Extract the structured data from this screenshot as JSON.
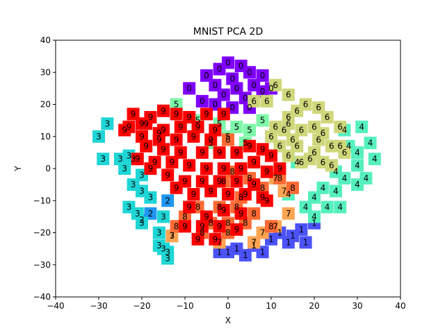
{
  "chart_data": {
    "type": "scatter",
    "title": "MNIST PCA 2D",
    "xlabel": "X",
    "ylabel": "Y",
    "xlim": [
      -40,
      40
    ],
    "ylim": [
      -40,
      40
    ],
    "xticks": [
      "−40",
      "−30",
      "−20",
      "−10",
      "0",
      "10",
      "20",
      "30",
      "40"
    ],
    "yticks": [
      "−40",
      "−30",
      "−20",
      "−10",
      "0",
      "10",
      "20",
      "30",
      "40"
    ],
    "grid": false,
    "marker": "square with digit label",
    "series": [
      {
        "name": "0",
        "color": "#7f00ff",
        "points": [
          [
            0,
            33
          ],
          [
            3,
            32
          ],
          [
            -2,
            31
          ],
          [
            5,
            30
          ],
          [
            -5,
            29
          ],
          [
            1,
            28
          ],
          [
            8,
            29
          ],
          [
            -3,
            26
          ],
          [
            2,
            25
          ],
          [
            6,
            26
          ],
          [
            -9,
            25
          ],
          [
            10,
            25
          ],
          [
            -1,
            23
          ],
          [
            4,
            22
          ],
          [
            -6,
            21
          ],
          [
            8,
            24
          ],
          [
            -3,
            20
          ],
          [
            1,
            19
          ],
          [
            5,
            19
          ]
        ]
      },
      {
        "name": "1",
        "color": "#4a52f8",
        "points": [
          [
            2,
            -25
          ],
          [
            6,
            -24
          ],
          [
            10,
            -22
          ],
          [
            12,
            -20
          ],
          [
            15,
            -21
          ],
          [
            17,
            -19
          ],
          [
            20,
            -17
          ],
          [
            8,
            -26
          ],
          [
            4,
            -27
          ],
          [
            0,
            -26
          ],
          [
            14,
            -23
          ],
          [
            18,
            -23
          ],
          [
            -2,
            -26
          ]
        ]
      },
      {
        "name": "2",
        "color": "#1f96f2",
        "points": [
          [
            -14,
            -10
          ],
          [
            -18,
            -14
          ],
          [
            -20,
            -16
          ]
        ]
      },
      {
        "name": "3",
        "color": "#1fd6d6",
        "points": [
          [
            -28,
            14
          ],
          [
            -30,
            10
          ],
          [
            -29,
            3
          ],
          [
            -25,
            3
          ],
          [
            -23,
            4
          ],
          [
            -22,
            3
          ],
          [
            -20,
            -2
          ],
          [
            -22,
            -5
          ],
          [
            -20,
            -7
          ],
          [
            -18,
            -9
          ],
          [
            -23,
            -12
          ],
          [
            -21,
            -14
          ],
          [
            -15,
            -15
          ],
          [
            -16,
            -20
          ],
          [
            -15,
            -25
          ],
          [
            -14,
            -28
          ],
          [
            -16,
            -24
          ],
          [
            -13,
            -21
          ],
          [
            -14,
            -26
          ],
          [
            -24,
            0
          ],
          [
            -20,
            -17
          ]
        ]
      },
      {
        "name": "4",
        "color": "#55f0be",
        "points": [
          [
            31,
            13
          ],
          [
            27,
            12
          ],
          [
            33,
            8
          ],
          [
            30,
            5
          ],
          [
            28,
            7
          ],
          [
            34,
            3
          ],
          [
            30,
            1
          ],
          [
            25,
            -1
          ],
          [
            32,
            -3
          ],
          [
            27,
            -3
          ],
          [
            22,
            -6
          ],
          [
            25,
            -7
          ],
          [
            20,
            -9
          ],
          [
            23,
            -12
          ],
          [
            18,
            -12
          ],
          [
            26,
            -12
          ],
          [
            20,
            -15
          ],
          [
            30,
            -5
          ],
          [
            14,
            -8
          ],
          [
            16,
            2
          ]
        ]
      },
      {
        "name": "5",
        "color": "#7df7a8",
        "points": [
          [
            -12,
            20
          ],
          [
            -2,
            14
          ],
          [
            2,
            13
          ],
          [
            5,
            12
          ],
          [
            8,
            15
          ],
          [
            -7,
            15
          ],
          [
            0,
            10
          ],
          [
            -4,
            8
          ],
          [
            4,
            8
          ]
        ]
      },
      {
        "name": "6",
        "color": "#d0d77a",
        "points": [
          [
            11,
            26
          ],
          [
            14,
            23
          ],
          [
            6,
            21
          ],
          [
            9,
            21
          ],
          [
            18,
            20
          ],
          [
            21,
            19
          ],
          [
            16,
            18
          ],
          [
            23,
            16
          ],
          [
            14,
            16
          ],
          [
            20,
            13
          ],
          [
            26,
            13
          ],
          [
            13,
            12
          ],
          [
            17,
            12
          ],
          [
            22,
            11
          ],
          [
            10,
            10
          ],
          [
            15,
            9
          ],
          [
            21,
            9
          ],
          [
            24,
            7
          ],
          [
            12,
            7
          ],
          [
            16,
            7
          ],
          [
            26,
            7
          ],
          [
            14,
            4
          ],
          [
            20,
            5
          ],
          [
            27,
            5
          ],
          [
            17,
            2
          ],
          [
            22,
            2
          ],
          [
            24,
            1
          ],
          [
            11,
            13
          ],
          [
            14,
            14
          ],
          [
            19,
            3
          ]
        ]
      },
      {
        "name": "7",
        "color": "#ffa552",
        "points": [
          [
            -2,
            -23
          ],
          [
            8,
            -20
          ],
          [
            11,
            -18
          ],
          [
            -13,
            -21
          ],
          [
            13,
            -7
          ],
          [
            11,
            -3
          ],
          [
            6,
            -23
          ],
          [
            14,
            -14
          ]
        ]
      },
      {
        "name": "8",
        "color": "#ff6a34",
        "points": [
          [
            0,
            9
          ],
          [
            1,
            -1
          ],
          [
            -1,
            -4
          ],
          [
            5,
            -3
          ],
          [
            3,
            -9
          ],
          [
            8,
            -6
          ],
          [
            12,
            -3
          ],
          [
            15,
            -6
          ],
          [
            -10,
            -15
          ],
          [
            -7,
            -12
          ],
          [
            -4,
            -17
          ],
          [
            0,
            -17
          ],
          [
            4,
            -17
          ],
          [
            6,
            -14
          ],
          [
            -2,
            -12
          ],
          [
            2,
            -12
          ],
          [
            10,
            -18
          ],
          [
            -12,
            -18
          ],
          [
            -6,
            -20
          ],
          [
            0,
            -20
          ]
        ]
      },
      {
        "name": "9",
        "color": "#ff0000",
        "points": [
          [
            -22,
            17
          ],
          [
            -18,
            16
          ],
          [
            -15,
            18
          ],
          [
            -12,
            17
          ],
          [
            -9,
            16
          ],
          [
            -5,
            17
          ],
          [
            -1,
            17
          ],
          [
            -23,
            13
          ],
          [
            -19,
            14
          ],
          [
            -15,
            12
          ],
          [
            -11,
            13
          ],
          [
            -7,
            13
          ],
          [
            -3,
            12
          ],
          [
            -20,
            10
          ],
          [
            -16,
            9
          ],
          [
            -12,
            9
          ],
          [
            -8,
            10
          ],
          [
            -4,
            9
          ],
          [
            -19,
            7
          ],
          [
            -15,
            6
          ],
          [
            -11,
            5
          ],
          [
            -6,
            5
          ],
          [
            -2,
            5
          ],
          [
            2,
            5
          ],
          [
            5,
            7
          ],
          [
            8,
            6
          ],
          [
            -21,
            3
          ],
          [
            -17,
            2
          ],
          [
            -13,
            2
          ],
          [
            -9,
            1
          ],
          [
            -5,
            0
          ],
          [
            -1,
            0
          ],
          [
            3,
            0
          ],
          [
            6,
            2
          ],
          [
            10,
            4
          ],
          [
            -18,
            0
          ],
          [
            -14,
            -2
          ],
          [
            -10,
            -4
          ],
          [
            -6,
            -4
          ],
          [
            -2,
            -4
          ],
          [
            2,
            -4
          ],
          [
            6,
            -5
          ],
          [
            9,
            -1
          ],
          [
            12,
            0
          ],
          [
            -12,
            -6
          ],
          [
            -8,
            -8
          ],
          [
            -4,
            -7
          ],
          [
            0,
            -8
          ],
          [
            4,
            -8
          ],
          [
            8,
            -9
          ],
          [
            -9,
            -12
          ],
          [
            -5,
            -15
          ],
          [
            -1,
            -13
          ],
          [
            3,
            -14
          ],
          [
            -10,
            -18
          ],
          [
            -6,
            -18
          ],
          [
            -2,
            -18
          ],
          [
            2,
            -19
          ],
          [
            -7,
            -22
          ],
          [
            -3,
            -22
          ],
          [
            9,
            -10
          ],
          [
            -16,
            11
          ],
          [
            -20,
            14
          ],
          [
            -24,
            12
          ]
        ]
      }
    ]
  }
}
